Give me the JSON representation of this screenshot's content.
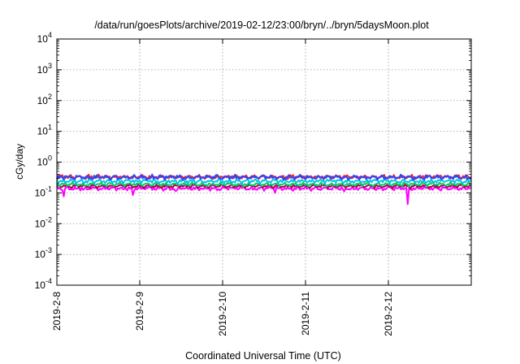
{
  "chart_data": {
    "type": "line",
    "title": "/data/run/goesPlots/archive/2019-02-12/23:00/bryn/../bryn/5daysMoon.plot",
    "xlabel": "Coordinated Universal Time (UTC)",
    "ylabel": "cGy/day",
    "yscale": "log",
    "ylim": [
      0.0001,
      10000
    ],
    "yticks": [
      {
        "base": "10",
        "exp": "4"
      },
      {
        "base": "10",
        "exp": "3"
      },
      {
        "base": "10",
        "exp": "2"
      },
      {
        "base": "10",
        "exp": "1"
      },
      {
        "base": "10",
        "exp": "0"
      },
      {
        "base": "10",
        "exp": "-1"
      },
      {
        "base": "10",
        "exp": "-2"
      },
      {
        "base": "10",
        "exp": "-3"
      },
      {
        "base": "10",
        "exp": "-4"
      }
    ],
    "xlim": [
      "2019-02-08",
      "2019-02-13"
    ],
    "xticks": [
      "2019-2-8",
      "2019-2-9",
      "2019-2-10",
      "2019-2-11",
      "2019-2-12"
    ],
    "grid": true,
    "series": [
      {
        "color": "#e8e8e8",
        "base": 0.14,
        "amp": 0.25,
        "dips": []
      },
      {
        "color": "#ff00ff",
        "base": 0.14,
        "amp": 0.22,
        "dips": [
          {
            "day": 0.08,
            "value": 0.06
          },
          {
            "day": 0.92,
            "value": 0.07
          },
          {
            "day": 1.44,
            "value": 0.075
          },
          {
            "day": 2.63,
            "value": 0.09
          },
          {
            "day": 3.46,
            "value": 0.075
          },
          {
            "day": 4.23,
            "value": 0.027
          }
        ]
      },
      {
        "color": "#b0004d",
        "base": 0.165,
        "amp": 0.2,
        "dips": []
      },
      {
        "color": "#00cc66",
        "base": 0.19,
        "amp": 0.2,
        "dips": []
      },
      {
        "color": "#00c8e0",
        "base": 0.24,
        "amp": 0.22,
        "dips": []
      },
      {
        "color": "#ff2020",
        "base": 0.33,
        "amp": 0.22,
        "dips": []
      },
      {
        "color": "#2a44ff",
        "base": 0.32,
        "amp": 0.25,
        "dips": []
      }
    ]
  }
}
